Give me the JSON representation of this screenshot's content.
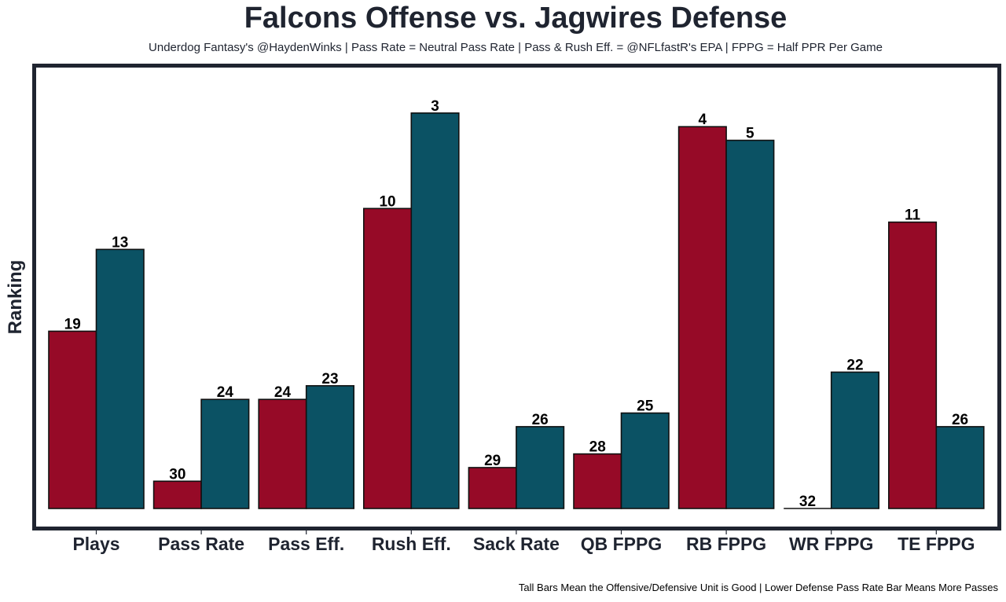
{
  "chart_data": {
    "type": "bar",
    "title": "Falcons Offense vs. Jagwires Defense",
    "subtitle": "Underdog Fantasy's @HaydenWinks | Pass Rate = Neutral Pass Rate | Pass & Rush Eff. = @NFLfastR's EPA | FPPG = Half PPR Per Game",
    "footnote": "Tall Bars Mean the Offensive/Defensive Unit is Good | Lower Defense Pass Rate Bar Means More Passes",
    "xlabel": "",
    "ylabel": "Ranking",
    "categories": [
      "Plays",
      "Pass Rate",
      "Pass Eff.",
      "Rush Eff.",
      "Sack Rate",
      "QB FPPG",
      "RB FPPG",
      "WR FPPG",
      "TE FPPG"
    ],
    "series": [
      {
        "name": "Falcons Offense",
        "color": "#960a27",
        "values": [
          19,
          30,
          24,
          10,
          29,
          28,
          4,
          32,
          11
        ]
      },
      {
        "name": "Jagwires Defense",
        "color": "#0b5264",
        "values": [
          13,
          24,
          23,
          3,
          26,
          25,
          5,
          22,
          26
        ]
      }
    ],
    "value_meaning": "rank (1 = best); bar height = 32 - rank",
    "rank_max": 32,
    "grid": false,
    "legend": "none"
  }
}
